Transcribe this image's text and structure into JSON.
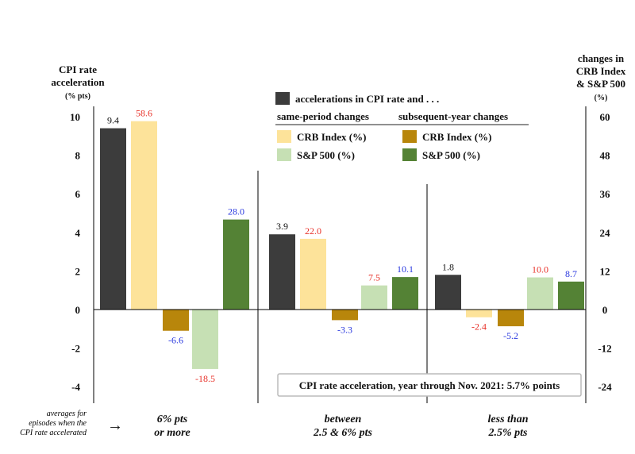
{
  "chart_data": {
    "type": "bar",
    "left_axis": {
      "title_lines": [
        "CPI rate",
        "acceleration"
      ],
      "unit": "(% pts)",
      "ticks": [
        10,
        8,
        6,
        4,
        2,
        0,
        -2,
        -4
      ],
      "ylim": [
        -4.5,
        10.5
      ]
    },
    "right_axis": {
      "title_lines": [
        "changes in",
        "CRB Index",
        "& S&P 500"
      ],
      "unit": "(%)",
      "ticks": [
        60,
        48,
        36,
        24,
        12,
        0,
        -12,
        -24
      ],
      "ylim": [
        -27,
        63
      ]
    },
    "legend": {
      "title": "accelerations in CPI rate and . . .",
      "same_period_header": "same-period changes",
      "subsequent_header": "subsequent-year changes",
      "crb_label": "CRB Index (%)",
      "sp_label": "S&P 500 (%)"
    },
    "x_prefix_lines": [
      "averages for",
      "episodes when the",
      "CPI rate accelerated"
    ],
    "arrow": "→",
    "groups": [
      {
        "label_lines": [
          "6% pts",
          "or more"
        ],
        "cpi": 9.4,
        "cpi_label": "9.4",
        "crb_same": 58.6,
        "crb_same_label": "58.6",
        "crb_next": -6.6,
        "crb_next_label": "-6.6",
        "sp_same": -18.5,
        "sp_same_label": "-18.5",
        "sp_next": 28.0,
        "sp_next_label": "28.0"
      },
      {
        "label_lines": [
          "between",
          "2.5 & 6% pts"
        ],
        "cpi": 3.9,
        "cpi_label": "3.9",
        "crb_same": 22.0,
        "crb_same_label": "22.0",
        "crb_next": -3.3,
        "crb_next_label": "-3.3",
        "sp_same": 7.5,
        "sp_same_label": "7.5",
        "sp_next": 10.1,
        "sp_next_label": "10.1"
      },
      {
        "label_lines": [
          "less than",
          "2.5% pts"
        ],
        "cpi": 1.8,
        "cpi_label": "1.8",
        "crb_same": -2.4,
        "crb_same_label": "-2.4",
        "crb_next": -5.2,
        "crb_next_label": "-5.2",
        "sp_same": 10.0,
        "sp_same_label": "10.0",
        "sp_next": 8.7,
        "sp_next_label": "8.7"
      }
    ],
    "note": "CPI rate acceleration, year through Nov. 2021: 5.7% points",
    "colors": {
      "cpi": "#3c3c3c",
      "crb_same": "#fde39a",
      "crb_next": "#b8860b",
      "sp_same": "#c6e0b4",
      "sp_next": "#548235",
      "same_text": "#e8322a",
      "next_text": "#2b3adf"
    }
  }
}
